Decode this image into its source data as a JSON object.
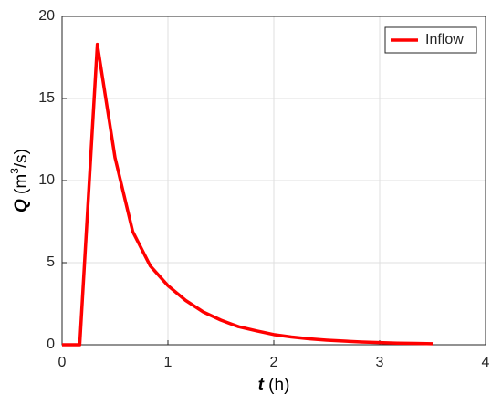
{
  "chart_data": {
    "type": "line",
    "xlabel": [
      "t",
      " (h)"
    ],
    "ylabel": [
      "Q",
      " (m",
      "3",
      "/s)"
    ],
    "series": [
      {
        "name": "Inflow",
        "color": "#ff0000",
        "x": [
          0,
          0.167,
          0.333,
          0.5,
          0.667,
          0.833,
          1.0,
          1.167,
          1.333,
          1.5,
          1.667,
          1.833,
          2.0,
          2.167,
          2.333,
          2.5,
          2.667,
          2.833,
          3.0,
          3.167,
          3.333,
          3.5
        ],
        "values": [
          0,
          0,
          18.3,
          11.4,
          6.9,
          4.8,
          3.6,
          2.7,
          2.0,
          1.5,
          1.1,
          0.85,
          0.62,
          0.47,
          0.36,
          0.28,
          0.22,
          0.17,
          0.13,
          0.1,
          0.08,
          0.06
        ]
      }
    ],
    "xlim": [
      0,
      4
    ],
    "xticks": [
      0,
      1,
      2,
      3,
      4
    ],
    "ylim": [
      0,
      20
    ],
    "yticks": [
      0,
      5,
      10,
      15,
      20
    ],
    "grid": true,
    "legend": "upper-right"
  }
}
